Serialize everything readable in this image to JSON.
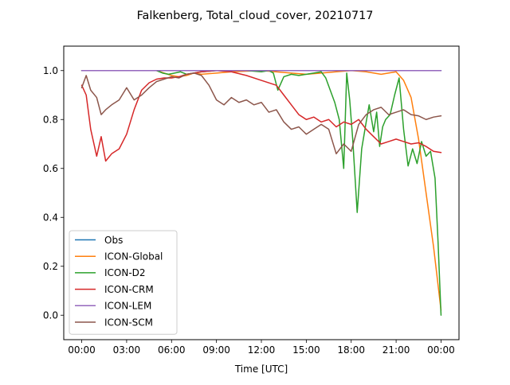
{
  "chart_data": {
    "type": "line",
    "title": "Falkenberg, Total_cloud_cover, 20210717",
    "xlabel": "Time [UTC]",
    "ylabel": "",
    "x_unit": "hours UTC",
    "xlim": [
      -1.2,
      25.2
    ],
    "ylim": [
      -0.1,
      1.1
    ],
    "x_ticks": [
      0,
      3,
      6,
      9,
      12,
      15,
      18,
      21,
      24
    ],
    "x_tick_labels": [
      "00:00",
      "03:00",
      "06:00",
      "09:00",
      "12:00",
      "15:00",
      "18:00",
      "21:00",
      "00:00"
    ],
    "y_ticks": [
      0.0,
      0.2,
      0.4,
      0.6,
      0.8,
      1.0
    ],
    "y_tick_labels": [
      "0.0",
      "0.2",
      "0.4",
      "0.6",
      "0.8",
      "1.0"
    ],
    "grid": false,
    "legend": "lower-left",
    "series": [
      {
        "name": "Obs",
        "color": "#1f77b4",
        "x": [
          0,
          24
        ],
        "y": [
          1.0,
          1.0
        ]
      },
      {
        "name": "ICON-Global",
        "color": "#ff7f0e",
        "x": [
          0,
          2,
          4,
          5,
          5.5,
          6,
          6.5,
          7,
          7.5,
          8,
          9,
          10,
          12,
          14,
          15,
          16,
          17,
          18,
          19,
          20,
          21,
          21.5,
          22,
          22.5,
          23,
          23.5,
          24
        ],
        "y": [
          1.0,
          1.0,
          1.0,
          1.0,
          0.99,
          0.98,
          0.975,
          0.98,
          0.99,
          0.985,
          0.99,
          0.995,
          1.0,
          0.99,
          0.985,
          0.99,
          0.995,
          1.0,
          0.995,
          0.985,
          0.995,
          0.96,
          0.89,
          0.72,
          0.5,
          0.28,
          0.02
        ]
      },
      {
        "name": "ICON-D2",
        "color": "#2ca02c",
        "x": [
          0,
          2,
          4,
          5,
          5.4,
          5.8,
          6.2,
          6.6,
          7,
          7.5,
          8,
          9,
          10,
          11,
          12,
          12.5,
          12.8,
          13.1,
          13.5,
          14,
          14.5,
          15,
          15.5,
          16,
          16.3,
          16.6,
          16.9,
          17.2,
          17.5,
          17.7,
          17.9,
          18.1,
          18.4,
          18.7,
          19,
          19.2,
          19.5,
          19.7,
          19.9,
          20.1,
          20.3,
          20.6,
          20.9,
          21.2,
          21.5,
          21.8,
          22.1,
          22.4,
          22.7,
          23,
          23.3,
          23.6,
          23.8,
          24
        ],
        "y": [
          1.0,
          1.0,
          1.0,
          1.0,
          0.99,
          0.985,
          0.99,
          0.995,
          0.985,
          0.99,
          0.995,
          1.0,
          1.0,
          1.0,
          0.995,
          1.0,
          0.99,
          0.92,
          0.975,
          0.985,
          0.98,
          0.985,
          0.99,
          0.995,
          0.97,
          0.92,
          0.87,
          0.8,
          0.6,
          0.99,
          0.88,
          0.72,
          0.42,
          0.68,
          0.79,
          0.86,
          0.75,
          0.83,
          0.69,
          0.77,
          0.8,
          0.82,
          0.9,
          0.97,
          0.76,
          0.61,
          0.68,
          0.62,
          0.71,
          0.65,
          0.67,
          0.56,
          0.3,
          0.0
        ]
      },
      {
        "name": "ICON-CRM",
        "color": "#d62728",
        "x": [
          0,
          0.3,
          0.6,
          1.0,
          1.3,
          1.6,
          2.0,
          2.5,
          3.0,
          3.5,
          4.0,
          4.5,
          5.0,
          5.5,
          6.0,
          6.5,
          7.0,
          7.5,
          8.0,
          9.0,
          10.0,
          11.0,
          12.0,
          13.0,
          13.5,
          14.0,
          14.5,
          15.0,
          15.5,
          16.0,
          16.5,
          17.0,
          17.5,
          18.0,
          18.5,
          19.0,
          19.5,
          20.0,
          20.5,
          21.0,
          21.5,
          22.0,
          22.5,
          23.0,
          23.5,
          24.0
        ],
        "y": [
          0.94,
          0.9,
          0.76,
          0.65,
          0.73,
          0.63,
          0.66,
          0.68,
          0.74,
          0.84,
          0.92,
          0.95,
          0.965,
          0.97,
          0.97,
          0.975,
          0.985,
          0.99,
          0.995,
          1.0,
          0.995,
          0.98,
          0.96,
          0.94,
          0.9,
          0.86,
          0.82,
          0.8,
          0.81,
          0.79,
          0.8,
          0.77,
          0.79,
          0.78,
          0.8,
          0.76,
          0.73,
          0.7,
          0.71,
          0.72,
          0.71,
          0.7,
          0.705,
          0.69,
          0.67,
          0.665
        ]
      },
      {
        "name": "ICON-LEM",
        "color": "#9467bd",
        "x": [
          0,
          24
        ],
        "y": [
          1.0,
          1.0
        ]
      },
      {
        "name": "ICON-SCM",
        "color": "#8c564b",
        "x": [
          0,
          0.3,
          0.6,
          1.0,
          1.3,
          1.6,
          2.0,
          2.5,
          3.0,
          3.5,
          4.0,
          4.5,
          5.0,
          5.5,
          6.0,
          6.5,
          7.0,
          7.5,
          8.0,
          8.5,
          9.0,
          9.5,
          10.0,
          10.5,
          11.0,
          11.5,
          12.0,
          12.5,
          13.0,
          13.5,
          14.0,
          14.5,
          15.0,
          15.5,
          16.0,
          16.5,
          17.0,
          17.5,
          18.0,
          18.5,
          19.0,
          19.5,
          20.0,
          20.5,
          21.0,
          21.5,
          22.0,
          22.5,
          23.0,
          23.5,
          24.0
        ],
        "y": [
          0.93,
          0.98,
          0.92,
          0.89,
          0.82,
          0.84,
          0.86,
          0.88,
          0.93,
          0.88,
          0.9,
          0.93,
          0.955,
          0.965,
          0.975,
          0.97,
          0.985,
          0.99,
          0.98,
          0.94,
          0.88,
          0.86,
          0.89,
          0.87,
          0.88,
          0.86,
          0.87,
          0.83,
          0.84,
          0.79,
          0.76,
          0.77,
          0.74,
          0.76,
          0.78,
          0.76,
          0.66,
          0.7,
          0.67,
          0.78,
          0.82,
          0.84,
          0.85,
          0.82,
          0.83,
          0.84,
          0.82,
          0.815,
          0.8,
          0.81,
          0.815
        ]
      }
    ]
  }
}
